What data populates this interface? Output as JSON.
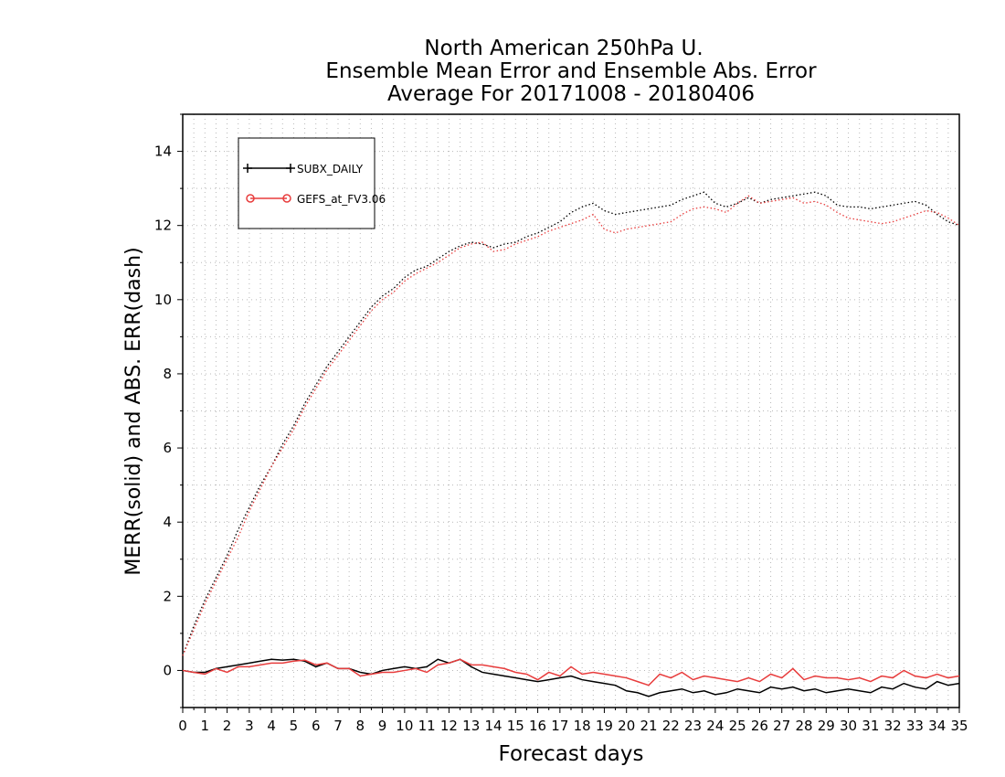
{
  "colors": {
    "series_1": "#000000",
    "series_2": "#e83c3c",
    "grid": "#b8b8b8",
    "axis": "#000000",
    "background": "#ffffff"
  },
  "chart_data": {
    "type": "line",
    "title_lines": [
      "North American 250hPa U.",
      "Ensemble Mean Error and Ensemble Abs. Error",
      "Average For 20171008 - 20180406"
    ],
    "xlabel": "Forecast days",
    "ylabel": "MERR(solid) and ABS. ERR(dash)",
    "xlim": [
      0,
      35
    ],
    "ylim": [
      -1,
      15
    ],
    "x_ticks": [
      "0",
      "1",
      "2",
      "3",
      "4",
      "5",
      "6",
      "7",
      "8",
      "9",
      "10",
      "11",
      "12",
      "13",
      "14",
      "15",
      "16",
      "17",
      "18",
      "19",
      "20",
      "21",
      "22",
      "23",
      "24",
      "25",
      "26",
      "27",
      "28",
      "29",
      "30",
      "31",
      "32",
      "33",
      "34",
      "35"
    ],
    "y_ticks": [
      "0",
      "2",
      "4",
      "6",
      "8",
      "10",
      "12",
      "14"
    ],
    "grid": true,
    "legend_position": "top-left",
    "legend": [
      {
        "label": "SUBX_DAILY",
        "marker": "plus"
      },
      {
        "label": "GEFS_at_FV3.06",
        "marker": "circle"
      }
    ],
    "x": [
      0,
      0.5,
      1,
      1.5,
      2,
      2.5,
      3,
      3.5,
      4,
      4.5,
      5,
      5.5,
      6,
      6.5,
      7,
      7.5,
      8,
      8.5,
      9,
      9.5,
      10,
      10.5,
      11,
      11.5,
      12,
      12.5,
      13,
      13.5,
      14,
      14.5,
      15,
      15.5,
      16,
      16.5,
      17,
      17.5,
      18,
      18.5,
      19,
      19.5,
      20,
      20.5,
      21,
      21.5,
      22,
      22.5,
      23,
      23.5,
      24,
      24.5,
      25,
      25.5,
      26,
      26.5,
      27,
      27.5,
      28,
      28.5,
      29,
      29.5,
      30,
      30.5,
      31,
      31.5,
      32,
      32.5,
      33,
      33.5,
      34,
      34.5,
      35
    ],
    "series": [
      {
        "name": "SUBX_DAILY",
        "style": "solid",
        "values": [
          0,
          -0.05,
          -0.05,
          0.05,
          0.1,
          0.15,
          0.2,
          0.25,
          0.3,
          0.28,
          0.3,
          0.25,
          0.1,
          0.2,
          0.05,
          0.05,
          -0.05,
          -0.1,
          0,
          0.05,
          0.1,
          0.05,
          0.1,
          0.3,
          0.2,
          0.3,
          0.1,
          -0.05,
          -0.1,
          -0.15,
          -0.2,
          -0.25,
          -0.3,
          -0.25,
          -0.2,
          -0.15,
          -0.25,
          -0.3,
          -0.35,
          -0.4,
          -0.55,
          -0.6,
          -0.7,
          -0.6,
          -0.55,
          -0.5,
          -0.6,
          -0.55,
          -0.65,
          -0.6,
          -0.5,
          -0.55,
          -0.6,
          -0.45,
          -0.5,
          -0.45,
          -0.55,
          -0.5,
          -0.6,
          -0.55,
          -0.5,
          -0.55,
          -0.6,
          -0.45,
          -0.5,
          -0.35,
          -0.45,
          -0.5,
          -0.3,
          -0.4,
          -0.35
        ]
      },
      {
        "name": "GEFS_at_FV3.06",
        "style": "solid",
        "values": [
          0,
          -0.05,
          -0.1,
          0.05,
          -0.05,
          0.1,
          0.1,
          0.15,
          0.2,
          0.2,
          0.25,
          0.28,
          0.15,
          0.2,
          0.05,
          0.05,
          -0.15,
          -0.1,
          -0.05,
          -0.05,
          0,
          0.05,
          -0.05,
          0.15,
          0.2,
          0.3,
          0.15,
          0.15,
          0.1,
          0.05,
          -0.05,
          -0.1,
          -0.25,
          -0.05,
          -0.15,
          0.1,
          -0.1,
          -0.05,
          -0.1,
          -0.15,
          -0.2,
          -0.3,
          -0.4,
          -0.1,
          -0.2,
          -0.05,
          -0.25,
          -0.15,
          -0.2,
          -0.25,
          -0.3,
          -0.2,
          -0.3,
          -0.1,
          -0.2,
          0.05,
          -0.25,
          -0.15,
          -0.2,
          -0.2,
          -0.25,
          -0.2,
          -0.3,
          -0.15,
          -0.2,
          0,
          -0.15,
          -0.2,
          -0.1,
          -0.2,
          -0.15
        ]
      },
      {
        "name": "SUBX_DAILY",
        "style": "dash",
        "values": [
          0.4,
          1.2,
          1.9,
          2.5,
          3.1,
          3.8,
          4.4,
          5.0,
          5.5,
          6.1,
          6.6,
          7.2,
          7.7,
          8.2,
          8.6,
          9.0,
          9.4,
          9.8,
          10.1,
          10.3,
          10.6,
          10.8,
          10.9,
          11.1,
          11.3,
          11.45,
          11.55,
          11.5,
          11.4,
          11.5,
          11.55,
          11.7,
          11.8,
          11.95,
          12.1,
          12.35,
          12.5,
          12.6,
          12.4,
          12.3,
          12.35,
          12.4,
          12.45,
          12.5,
          12.55,
          12.7,
          12.8,
          12.9,
          12.6,
          12.5,
          12.6,
          12.75,
          12.6,
          12.7,
          12.75,
          12.8,
          12.85,
          12.9,
          12.8,
          12.55,
          12.5,
          12.5,
          12.45,
          12.5,
          12.55,
          12.6,
          12.65,
          12.55,
          12.3,
          12.1,
          12.0
        ]
      },
      {
        "name": "GEFS_at_FV3.06",
        "style": "dash",
        "values": [
          0.4,
          1.1,
          1.8,
          2.4,
          3.0,
          3.6,
          4.3,
          4.9,
          5.5,
          6.0,
          6.5,
          7.1,
          7.6,
          8.1,
          8.5,
          8.9,
          9.3,
          9.7,
          10.0,
          10.2,
          10.5,
          10.7,
          10.85,
          11.0,
          11.2,
          11.4,
          11.5,
          11.55,
          11.3,
          11.35,
          11.5,
          11.6,
          11.7,
          11.85,
          11.95,
          12.05,
          12.15,
          12.3,
          11.9,
          11.8,
          11.9,
          11.95,
          12.0,
          12.05,
          12.1,
          12.3,
          12.45,
          12.5,
          12.45,
          12.35,
          12.6,
          12.8,
          12.6,
          12.65,
          12.7,
          12.75,
          12.6,
          12.65,
          12.55,
          12.35,
          12.2,
          12.15,
          12.1,
          12.05,
          12.1,
          12.2,
          12.3,
          12.4,
          12.35,
          12.2,
          12.0
        ]
      }
    ]
  }
}
